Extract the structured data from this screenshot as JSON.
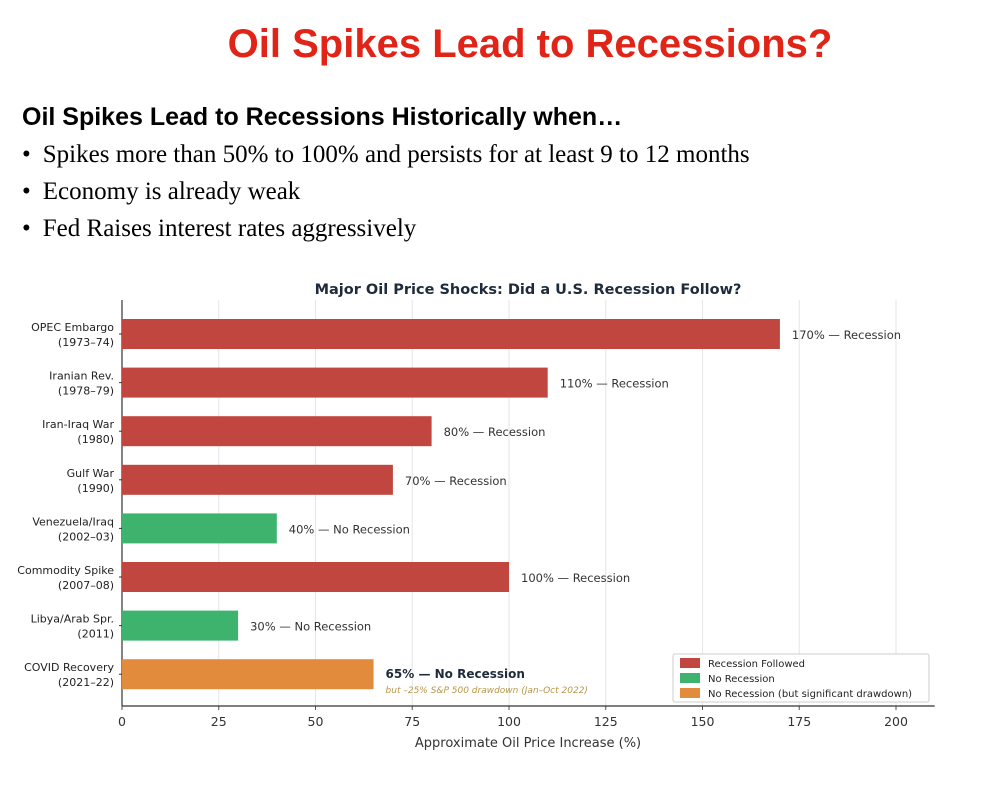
{
  "header": {
    "title": "Oil Spikes Lead to Recessions?",
    "subheading": "Oil Spikes Lead to Recessions Historically when…",
    "bullets": [
      "Spikes more than 50% to 100% and persists for at least 9 to 12 months",
      "Economy is already weak",
      "Fed Raises interest rates aggressively"
    ]
  },
  "colors": {
    "recession": "#c0463f",
    "no_recession": "#3db36e",
    "drawdown": "#e28b3c"
  },
  "chart_data": {
    "type": "bar",
    "orientation": "horizontal",
    "title": "Major Oil Price Shocks: Did a U.S. Recession Follow?",
    "xlabel": "Approximate Oil Price Increase (%)",
    "ylabel": "",
    "xlim": [
      0,
      210
    ],
    "xticks": [
      "0",
      "25",
      "50",
      "75",
      "100",
      "125",
      "150",
      "175",
      "200"
    ],
    "grid": true,
    "legend_position": "bottom-right",
    "categories": [
      [
        "OPEC Embargo",
        "(1973–74)"
      ],
      [
        "Iranian Rev.",
        "(1978–79)"
      ],
      [
        "Iran-Iraq War",
        "(1980)"
      ],
      [
        "Gulf War",
        "(1990)"
      ],
      [
        "Venezuela/Iraq",
        "(2002–03)"
      ],
      [
        "Commodity Spike",
        "(2007–08)"
      ],
      [
        "Libya/Arab Spr.",
        "(2011)"
      ],
      [
        "COVID Recovery",
        "(2021–22)"
      ]
    ],
    "values": [
      170,
      110,
      80,
      70,
      40,
      100,
      30,
      65
    ],
    "outcomes": [
      "recession",
      "recession",
      "recession",
      "recession",
      "no_recession",
      "recession",
      "no_recession",
      "drawdown"
    ],
    "data_labels": [
      "170% — Recession",
      "110% — Recession",
      "80% — Recession",
      "70% — Recession",
      "40% — No Recession",
      "100% — Recession",
      "30% — No Recession",
      "65% — No Recession"
    ],
    "annotation": "but –25% S&P 500 drawdown (Jan–Oct 2022)",
    "legend": [
      {
        "key": "recession",
        "label": "Recession Followed"
      },
      {
        "key": "no_recession",
        "label": "No Recession"
      },
      {
        "key": "drawdown",
        "label": "No Recession (but significant drawdown)"
      }
    ]
  }
}
